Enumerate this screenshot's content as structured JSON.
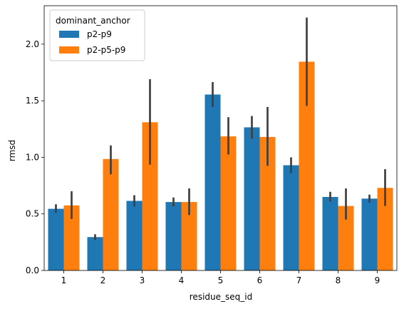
{
  "chart_data": {
    "type": "bar",
    "xlabel": "residue_seq_id",
    "ylabel": "rmsd",
    "categories": [
      "1",
      "2",
      "3",
      "4",
      "5",
      "6",
      "7",
      "8",
      "9"
    ],
    "ylim": [
      0,
      2.34
    ],
    "yticks": [
      "0.0",
      "0.5",
      "1.0",
      "1.5",
      "2.0"
    ],
    "ytick_values": [
      0.0,
      0.5,
      1.0,
      1.5,
      2.0
    ],
    "legend": {
      "title": "dominant_anchor",
      "placement": "upper-left"
    },
    "grid": false,
    "series": [
      {
        "name": "p2-p9",
        "color": "#1f77b4",
        "values": [
          0.545,
          0.295,
          0.615,
          0.605,
          1.555,
          1.265,
          0.93,
          0.65,
          0.635
        ],
        "err_low": [
          0.51,
          0.27,
          0.565,
          0.565,
          1.445,
          1.165,
          0.86,
          0.61,
          0.6
        ],
        "err_high": [
          0.585,
          0.32,
          0.665,
          0.645,
          1.665,
          1.365,
          1.0,
          0.695,
          0.67
        ]
      },
      {
        "name": "p2-p5-p9",
        "color": "#ff7f0e",
        "values": [
          0.575,
          0.985,
          1.31,
          0.605,
          1.185,
          1.18,
          1.845,
          0.57,
          0.73
        ],
        "err_low": [
          0.455,
          0.85,
          0.935,
          0.49,
          1.025,
          0.925,
          1.455,
          0.45,
          0.57
        ],
        "err_high": [
          0.7,
          1.105,
          1.69,
          0.725,
          1.355,
          1.445,
          2.235,
          0.725,
          0.895
        ]
      }
    ],
    "errorbar_color": "#3f3f3f"
  }
}
